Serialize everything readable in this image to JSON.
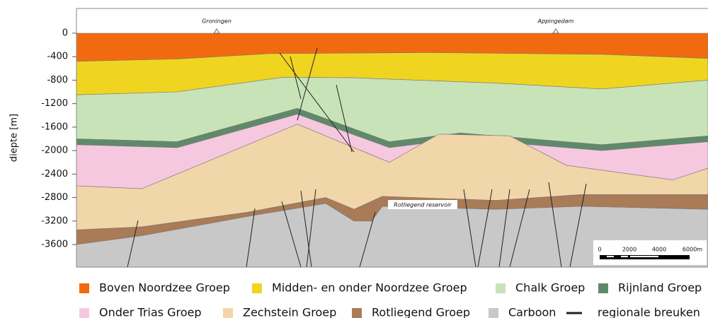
{
  "chart_data": {
    "type": "cross-section",
    "ylabel": "diepte [m]",
    "ylim": [
      -3985,
      421
    ],
    "yticks": [
      0,
      -400,
      -800,
      -1200,
      -1600,
      -2000,
      -2400,
      -2800,
      -3200,
      -3600
    ],
    "annotations": [
      "Groningen",
      "Appingedam",
      "Rotliegend reservoir"
    ],
    "scale_bar": [
      "0",
      "2000",
      "4000",
      "6000m"
    ],
    "series": [
      {
        "name": "Boven Noordzee Groep",
        "color": "#f26a10"
      },
      {
        "name": "Midden- en onder Noordzee Groep",
        "color": "#f0d520"
      },
      {
        "name": "Chalk Groep",
        "color": "#c9e3b9"
      },
      {
        "name": "Rijnland Groep",
        "color": "#5f8a6a"
      },
      {
        "name": "Onder Trias Groep",
        "color": "#f6c8e0"
      },
      {
        "name": "Zechstein Groep",
        "color": "#f1d6aa"
      },
      {
        "name": "Rotliegend Groep",
        "color": "#a97b56"
      },
      {
        "name": "Carboon",
        "color": "#c8c8c8"
      },
      {
        "name": "regionale breuken",
        "color": "#222222"
      }
    ]
  }
}
